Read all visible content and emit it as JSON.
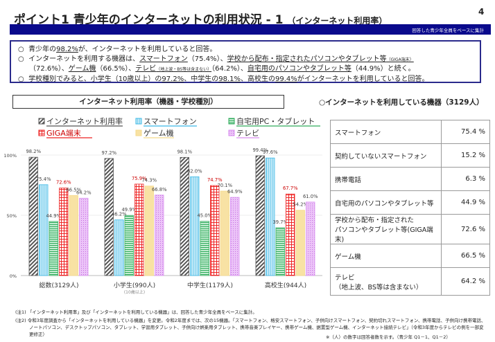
{
  "header": {
    "title": "ポイント1 青少年のインターネットの利用状況 - 1",
    "subtitle": "（インターネット利用率）",
    "page": "4",
    "bar_note": "回答した青少年全員をベースに集計"
  },
  "summary": {
    "l1a": "青少年の",
    "l1b": "98.2%",
    "l1c": "が、インターネットを利用していると回答。",
    "l2a": "インターネットを利用する機器は、",
    "l2b": "スマートフォン",
    "l2c": "（75.4%）、",
    "l2d": "学校から配布・指定されたパソコンやタブレット等",
    "l2e": "（GIGA端末）",
    "l3a": "（72.6%）、",
    "l3b": "ゲーム機",
    "l3c": "（66.5%）、",
    "l3d": "テレビ",
    "l3e": "（地上波・BS等は含まない）",
    "l3f": "（64.2%）、",
    "l3g": "自宅用のパソコンやタブレット等",
    "l3h": "（44.9%）と続く。",
    "l4a": "学校種別でみると、小学生（10歳以上）の",
    "l4b": "97.2%",
    "l4c": "、中学生の",
    "l4d": "98.1%",
    "l4e": "、高校生の",
    "l4f": "99.4%",
    "l4g": "がインターネットを利用していると回答。",
    "bullet": "○"
  },
  "chart_box_title": "インターネット利用率（機器・学校種別）",
  "chart_data": {
    "type": "bar",
    "categories": [
      "総数(3129人)",
      "小学生(990人)",
      "中学生(1179人)",
      "高校生(944人)"
    ],
    "category_sub": [
      "",
      "(10歳以上)",
      "",
      ""
    ],
    "ylim": [
      0,
      100
    ],
    "yticks": [
      "0%",
      "50%",
      "100%"
    ],
    "legend_placement": "top",
    "series": [
      {
        "name": "インターネット利用率",
        "values": [
          98.2,
          97.2,
          98.1,
          99.4
        ],
        "color": "#555555",
        "pattern": "diagonal"
      },
      {
        "name": "スマートフォン",
        "values": [
          75.4,
          46.2,
          82.0,
          97.6
        ],
        "color": "#3bb8e6",
        "pattern": "vertical"
      },
      {
        "name": "自宅用PC・タブレット",
        "values": [
          44.9,
          49.9,
          45.0,
          39.7
        ],
        "color": "#2eaa5a",
        "pattern": "horizontal"
      },
      {
        "name": "GIGA端末",
        "values": [
          72.6,
          75.9,
          74.7,
          67.7
        ],
        "color": "#ee2222",
        "pattern": "grid"
      },
      {
        "name": "ゲーム機",
        "values": [
          66.5,
          74.3,
          70.1,
          54.2
        ],
        "color": "#f5d98a",
        "pattern": "solid"
      },
      {
        "name": "テレビ",
        "values": [
          64.2,
          66.8,
          64.9,
          61.0
        ],
        "color": "#d98ef0",
        "pattern": "dots"
      }
    ]
  },
  "devices": {
    "title": "○インターネットを利用している機器（3129人）",
    "rows": [
      {
        "label": "スマートフォン",
        "value": "75.4 %"
      },
      {
        "label": "契約していないスマートフォン",
        "value": "15.2 %"
      },
      {
        "label": "携帯電話",
        "value": "6.3 %"
      },
      {
        "label": "自宅用のパソコンやタブレット等",
        "value": "44.9 %"
      },
      {
        "label": "学校から配布・指定された\nパソコンやタブレット等(GIGA端末)",
        "value": "72.6 %"
      },
      {
        "label": "ゲーム機",
        "value": "66.5 %"
      },
      {
        "label": "テレビ\n（地上波、BS等は含まない）",
        "value": "64.2 %"
      }
    ]
  },
  "notes": {
    "n1": "(注1) 「インターネット利用率」及び「インターネットを利用している機器」は、回答した青少年全員をベースに集計。",
    "n2": "(注2) 令和3年度調査から「インターネットを利用している機器」を変更。令和2年度までは、次の15機器。「スマートフォン、格安スマートフォン、子供向けスマートフォン、契約切れスマートフォン、携帯電話、子供向け携帯電話、ノートパソコン、デスクトップパソコン、タブレット、学習用タブレット、子供向け娯楽用タブレット、携帯音楽プレイヤー、携帯ゲーム機、据置型ゲーム機、インターネット接続テレビ」（令和3年度からテレビの例を一部変更修正）",
    "n3": "※（人）の数字は回答者数を示す。（青少年 Q1－1、Q1－2）"
  }
}
